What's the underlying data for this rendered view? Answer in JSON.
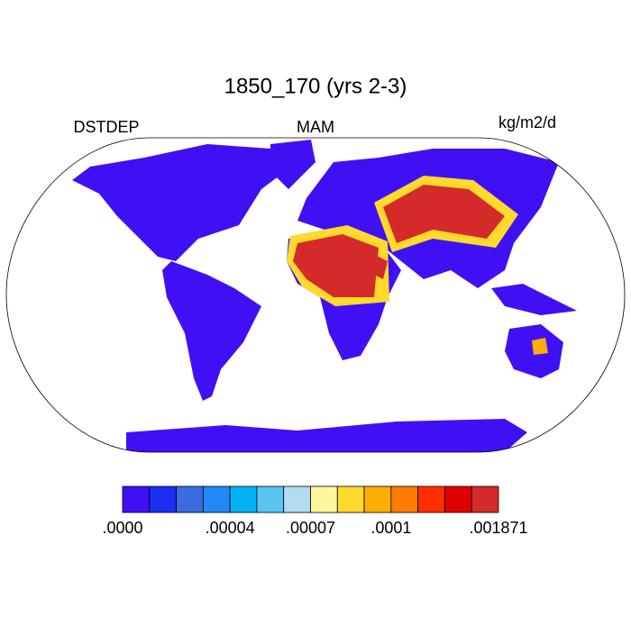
{
  "header": {
    "title": "1850_170 (yrs 2-3)",
    "left_label": "DSTDEP",
    "center_label": "MAM",
    "units": "kg/m2/d"
  },
  "colorbar": {
    "colors": [
      "#4010f5",
      "#1c2ff0",
      "#3a6be2",
      "#2089f5",
      "#00b2f2",
      "#58c4f0",
      "#b2dcf2",
      "#fff79c",
      "#ffd92c",
      "#ffae00",
      "#ff7a00",
      "#ff2e00",
      "#e00000",
      "#d42a2a"
    ],
    "labels": [
      ".0000",
      ".00004",
      ".00007",
      ".0001",
      ".001871"
    ]
  }
}
